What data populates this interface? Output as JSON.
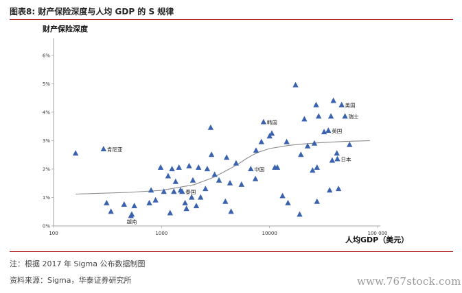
{
  "figure": {
    "title": "图表8:   财产保险深度与人均 GDP 的 S 规律",
    "note": "注：根据 2017 年 Sigma 公布数据制图",
    "source": "资料来源：Sigma，华泰证券研究所",
    "watermark": "www.767stock.com"
  },
  "colors": {
    "marker": "#3a62ae",
    "curve": "#8a8a8a",
    "rule": "#b22222"
  },
  "chart_data": {
    "type": "scatter",
    "title": "",
    "ylabel": "财产保险深度",
    "xlabel": "人均GDP（美元）",
    "x_scale": "log",
    "xlim": [
      100,
      100000
    ],
    "ylim": [
      0,
      6.5
    ],
    "x_ticks": [
      100,
      1000,
      10000,
      100000
    ],
    "x_tick_labels": [
      "100",
      "1000",
      "10000",
      "100 000"
    ],
    "y_ticks": [
      0,
      1,
      2,
      3,
      4,
      5,
      6
    ],
    "y_tick_labels": [
      "0%",
      "1%",
      "2%",
      "3%",
      "4%",
      "5%",
      "6%"
    ],
    "marker": "triangle",
    "points": [
      {
        "x": 160,
        "y": 2.55
      },
      {
        "x": 290,
        "y": 2.7
      },
      {
        "x": 310,
        "y": 0.8
      },
      {
        "x": 340,
        "y": 0.5
      },
      {
        "x": 450,
        "y": 0.75
      },
      {
        "x": 520,
        "y": 0.35
      },
      {
        "x": 530,
        "y": 0.4
      },
      {
        "x": 560,
        "y": 0.7
      },
      {
        "x": 770,
        "y": 0.8
      },
      {
        "x": 800,
        "y": 1.25
      },
      {
        "x": 880,
        "y": 0.9
      },
      {
        "x": 980,
        "y": 2.05
      },
      {
        "x": 1050,
        "y": 1.2
      },
      {
        "x": 1150,
        "y": 1.75
      },
      {
        "x": 1200,
        "y": 0.45
      },
      {
        "x": 1250,
        "y": 2.0
      },
      {
        "x": 1300,
        "y": 1.2
      },
      {
        "x": 1350,
        "y": 1.55
      },
      {
        "x": 1450,
        "y": 2.05
      },
      {
        "x": 1500,
        "y": 1.25
      },
      {
        "x": 1550,
        "y": 1.2
      },
      {
        "x": 1650,
        "y": 0.8
      },
      {
        "x": 1700,
        "y": 0.6
      },
      {
        "x": 1800,
        "y": 2.1
      },
      {
        "x": 1900,
        "y": 1.0
      },
      {
        "x": 1950,
        "y": 1.6
      },
      {
        "x": 2100,
        "y": 0.7
      },
      {
        "x": 2200,
        "y": 2.05
      },
      {
        "x": 2300,
        "y": 1.0
      },
      {
        "x": 2550,
        "y": 1.3
      },
      {
        "x": 2650,
        "y": 2.0
      },
      {
        "x": 2850,
        "y": 3.45
      },
      {
        "x": 2900,
        "y": 2.5
      },
      {
        "x": 3100,
        "y": 1.8
      },
      {
        "x": 3400,
        "y": 1.6
      },
      {
        "x": 3900,
        "y": 0.85
      },
      {
        "x": 4000,
        "y": 2.4
      },
      {
        "x": 4300,
        "y": 1.5
      },
      {
        "x": 4400,
        "y": 0.5
      },
      {
        "x": 4900,
        "y": 2.2
      },
      {
        "x": 5500,
        "y": 1.45
      },
      {
        "x": 6700,
        "y": 2.0
      },
      {
        "x": 7400,
        "y": 1.65
      },
      {
        "x": 7500,
        "y": 2.65
      },
      {
        "x": 8400,
        "y": 2.95
      },
      {
        "x": 8800,
        "y": 3.65
      },
      {
        "x": 10000,
        "y": 3.15
      },
      {
        "x": 10500,
        "y": 3.25
      },
      {
        "x": 11200,
        "y": 2.05
      },
      {
        "x": 11800,
        "y": 2.05
      },
      {
        "x": 13200,
        "y": 1.05
      },
      {
        "x": 14400,
        "y": 2.95
      },
      {
        "x": 14800,
        "y": 0.8
      },
      {
        "x": 17400,
        "y": 4.95
      },
      {
        "x": 19000,
        "y": 0.4
      },
      {
        "x": 19500,
        "y": 2.5
      },
      {
        "x": 21000,
        "y": 3.75
      },
      {
        "x": 22500,
        "y": 2.8
      },
      {
        "x": 25000,
        "y": 1.95
      },
      {
        "x": 26000,
        "y": 2.9
      },
      {
        "x": 27000,
        "y": 4.25
      },
      {
        "x": 27500,
        "y": 2.05
      },
      {
        "x": 27500,
        "y": 0.85
      },
      {
        "x": 28500,
        "y": 3.85
      },
      {
        "x": 32000,
        "y": 3.3
      },
      {
        "x": 35000,
        "y": 3.35
      },
      {
        "x": 36000,
        "y": 1.25
      },
      {
        "x": 37000,
        "y": 3.85
      },
      {
        "x": 38000,
        "y": 2.3
      },
      {
        "x": 39000,
        "y": 4.4
      },
      {
        "x": 42000,
        "y": 2.55
      },
      {
        "x": 42500,
        "y": 2.35
      },
      {
        "x": 43500,
        "y": 1.3
      },
      {
        "x": 46500,
        "y": 4.25
      },
      {
        "x": 50000,
        "y": 3.85
      },
      {
        "x": 55000,
        "y": 2.85
      }
    ],
    "trend_curve": [
      {
        "x": 160,
        "y": 1.12
      },
      {
        "x": 500,
        "y": 1.18
      },
      {
        "x": 1000,
        "y": 1.25
      },
      {
        "x": 2000,
        "y": 1.45
      },
      {
        "x": 3000,
        "y": 1.7
      },
      {
        "x": 4000,
        "y": 1.95
      },
      {
        "x": 5000,
        "y": 2.15
      },
      {
        "x": 6000,
        "y": 2.35
      },
      {
        "x": 7000,
        "y": 2.5
      },
      {
        "x": 8000,
        "y": 2.6
      },
      {
        "x": 10000,
        "y": 2.72
      },
      {
        "x": 15000,
        "y": 2.83
      },
      {
        "x": 20000,
        "y": 2.88
      },
      {
        "x": 30000,
        "y": 2.93
      },
      {
        "x": 50000,
        "y": 2.97
      },
      {
        "x": 85000,
        "y": 3.0
      }
    ],
    "annotations": [
      {
        "label": "肯尼亚",
        "x": 290,
        "y": 2.7,
        "side": "right"
      },
      {
        "label": "越南",
        "x": 530,
        "y": 0.4,
        "side": "below"
      },
      {
        "label": "泰国",
        "x": 1550,
        "y": 1.2,
        "side": "right"
      },
      {
        "label": "中国",
        "x": 6700,
        "y": 2.0,
        "side": "right"
      },
      {
        "label": "韩国",
        "x": 8800,
        "y": 3.65,
        "side": "right"
      },
      {
        "label": "英国",
        "x": 35000,
        "y": 3.35,
        "side": "right"
      },
      {
        "label": "日本",
        "x": 42500,
        "y": 2.35,
        "side": "right"
      },
      {
        "label": "美国",
        "x": 46500,
        "y": 4.25,
        "side": "right"
      },
      {
        "label": "瑞士",
        "x": 50000,
        "y": 3.85,
        "side": "right"
      }
    ],
    "grid": false,
    "legend": "none"
  }
}
